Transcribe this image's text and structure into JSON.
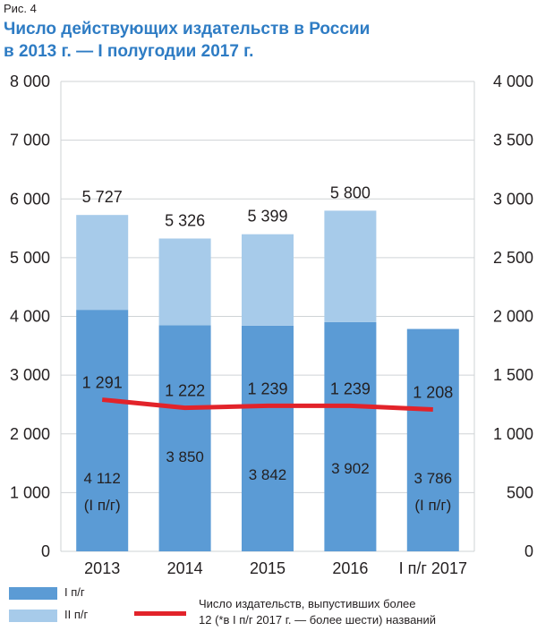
{
  "figure_label": "Рис. 4",
  "title_line1": "Число действующих издательств в России",
  "title_line2": "в 2013 г.  —  I полугодии 2017 г.",
  "colors": {
    "h1": "#5b9bd5",
    "h2": "#a7cbea",
    "line": "#e2232a",
    "title": "#2e7cc4",
    "grid": "#cfd3d6",
    "text": "#231f20"
  },
  "legend": {
    "h1_label": "I п/г",
    "h2_label": "II п/г",
    "line_label_line1": "Число издательств, выпустивших более",
    "line_label_line2": "12 (*в I п/г 2017 г. — более шести) названий"
  },
  "chart_data": {
    "type": "bar",
    "stacked": true,
    "categories": [
      "2013",
      "2014",
      "2015",
      "2016",
      "I п/г 2017"
    ],
    "series": [
      {
        "name": "I п/г",
        "values": [
          4112,
          3850,
          3842,
          3902,
          3786
        ],
        "color": "#5b9bd5"
      },
      {
        "name": "II п/г",
        "values": [
          1615,
          1476,
          1557,
          1898,
          null
        ],
        "color": "#a7cbea"
      }
    ],
    "h1_labels": [
      "4 112",
      "3 850",
      "3 842",
      "3 902",
      "3 786"
    ],
    "h1_sublabels": [
      "(I п/г)",
      "",
      "",
      "",
      "(I п/г)"
    ],
    "total_labels": [
      "5 727",
      "5 326",
      "5 399",
      "5 800",
      ""
    ],
    "line": {
      "name": "Число издательств, выпустивших более 12 (*в I п/г 2017 г. — более шести) названий",
      "axis": "right",
      "values": [
        1291,
        1222,
        1239,
        1239,
        1208
      ],
      "labels": [
        "1 291",
        "1 222",
        "1 239",
        "1 239",
        "1 208"
      ],
      "color": "#e2232a"
    },
    "y_left": {
      "min": 0,
      "max": 8000,
      "step": 1000,
      "tick_labels": [
        "0",
        "1 000",
        "2 000",
        "3 000",
        "4 000",
        "5 000",
        "6 000",
        "7 000",
        "8 000"
      ]
    },
    "y_right": {
      "min": 0,
      "max": 4000,
      "step": 500,
      "tick_labels": [
        "0",
        "500",
        "1 000",
        "1 500",
        "2 000",
        "2 500",
        "3 000",
        "3 500",
        "4 000"
      ]
    },
    "grid": true,
    "legend_position": "bottom"
  }
}
